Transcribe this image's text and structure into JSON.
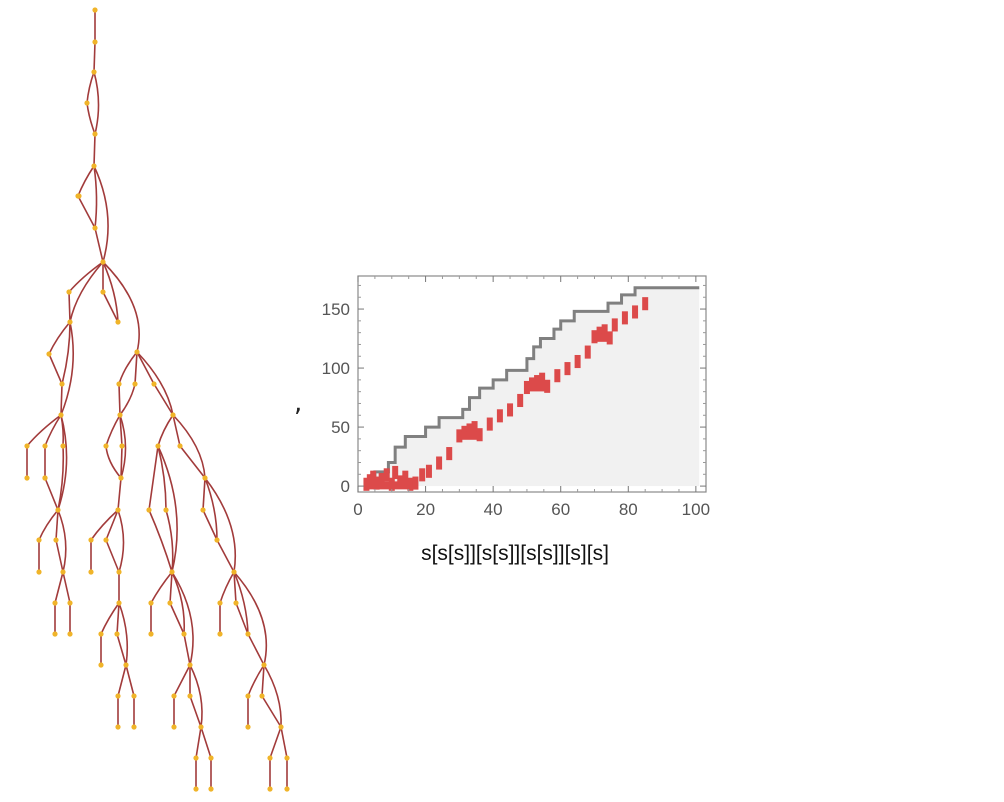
{
  "separator": ",",
  "caption": "s[s[s]][s[s]][s[s]][s][s]",
  "colors": {
    "tree_node": "#f0b429",
    "tree_edge": "#a23b3b",
    "plot_frame": "#8a8a8a",
    "plot_fill": "#f1f1f1",
    "envelope": "#808080",
    "marks": "#dc4a4a"
  },
  "chart_data": {
    "type": "area",
    "xlim": [
      0,
      103
    ],
    "ylim": [
      -5,
      178
    ],
    "x_ticks": [
      0,
      20,
      40,
      60,
      80,
      100
    ],
    "y_ticks": [
      0,
      50,
      100,
      150
    ],
    "x_tick_labels": [
      "0",
      "20",
      "40",
      "60",
      "80",
      "100"
    ],
    "y_tick_labels": [
      "0",
      "50",
      "100",
      "150"
    ],
    "envelope_step": {
      "x": [
        2,
        4,
        5,
        9,
        11,
        14,
        18,
        20,
        24,
        30,
        31,
        33,
        36,
        40,
        44,
        49,
        50,
        52,
        54,
        58,
        60,
        64,
        70,
        74,
        78,
        82,
        101
      ],
      "y": [
        0,
        9,
        12,
        20,
        33,
        42,
        42,
        50,
        58,
        58,
        65,
        75,
        83,
        90,
        98,
        98,
        108,
        118,
        125,
        133,
        140,
        148,
        148,
        155,
        162,
        168,
        168
      ]
    },
    "red_marks": [
      {
        "x": 2.5,
        "y": 2
      },
      {
        "x": 3.5,
        "y": 5
      },
      {
        "x": 4.5,
        "y": 8
      },
      {
        "x": 5.5,
        "y": 3
      },
      {
        "x": 7,
        "y": 6
      },
      {
        "x": 8.5,
        "y": 10
      },
      {
        "x": 10,
        "y": 2
      },
      {
        "x": 11,
        "y": 12
      },
      {
        "x": 12.5,
        "y": 4
      },
      {
        "x": 14,
        "y": 8
      },
      {
        "x": 15.5,
        "y": 2
      },
      {
        "x": 17,
        "y": 3
      },
      {
        "x": 19,
        "y": 10
      },
      {
        "x": 21,
        "y": 13
      },
      {
        "x": 24,
        "y": 20
      },
      {
        "x": 27,
        "y": 28
      },
      {
        "x": 30,
        "y": 43
      },
      {
        "x": 31.5,
        "y": 46
      },
      {
        "x": 33,
        "y": 48
      },
      {
        "x": 34.5,
        "y": 50
      },
      {
        "x": 36,
        "y": 44
      },
      {
        "x": 39,
        "y": 53
      },
      {
        "x": 42,
        "y": 60
      },
      {
        "x": 45,
        "y": 65
      },
      {
        "x": 48,
        "y": 73
      },
      {
        "x": 50,
        "y": 84
      },
      {
        "x": 51.5,
        "y": 87
      },
      {
        "x": 53,
        "y": 89
      },
      {
        "x": 54.5,
        "y": 91
      },
      {
        "x": 56,
        "y": 85
      },
      {
        "x": 59,
        "y": 94
      },
      {
        "x": 62,
        "y": 100
      },
      {
        "x": 65,
        "y": 106
      },
      {
        "x": 68,
        "y": 114
      },
      {
        "x": 70,
        "y": 127
      },
      {
        "x": 71.5,
        "y": 130
      },
      {
        "x": 73,
        "y": 132
      },
      {
        "x": 74.5,
        "y": 126
      },
      {
        "x": 76,
        "y": 137
      },
      {
        "x": 79,
        "y": 143
      },
      {
        "x": 82,
        "y": 148
      },
      {
        "x": 85,
        "y": 155
      }
    ]
  }
}
